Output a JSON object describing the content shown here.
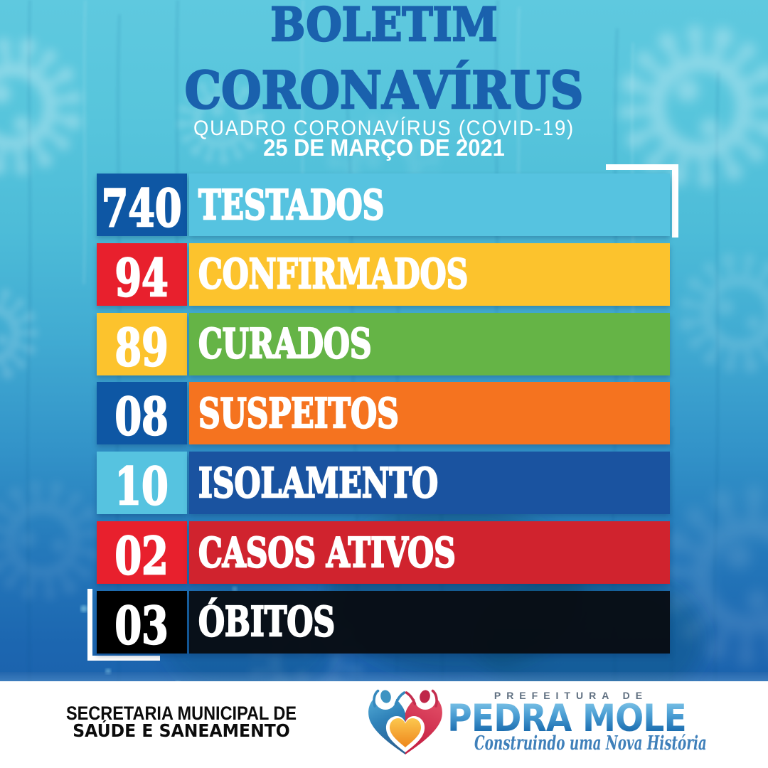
{
  "header": {
    "title_line1": "BOLETIM",
    "title_line2": "CORONAVÍRUS",
    "subtitle": "QUADRO CORONAVÍRUS (COVID-19)",
    "date": "25 DE MARÇO DE 2021"
  },
  "stats": [
    {
      "value": "740",
      "label": "TESTADOS",
      "value_bg": "#0e57a4",
      "bar_bg": "#56c3e0"
    },
    {
      "value": "94",
      "label": "CONFIRMADOS",
      "value_bg": "#e8202d",
      "bar_bg": "#fcc32d"
    },
    {
      "value": "89",
      "label": "CURADOS",
      "value_bg": "#fcc32d",
      "bar_bg": "#65b446"
    },
    {
      "value": "08",
      "label": "SUSPEITOS",
      "value_bg": "#0e57a4",
      "bar_bg": "#f5731f"
    },
    {
      "value": "10",
      "label": "ISOLAMENTO",
      "value_bg": "#56c3e0",
      "bar_bg": "#1a53a0"
    },
    {
      "value": "02",
      "label": "CASOS ATIVOS",
      "value_bg": "#e8202d",
      "bar_bg": "#d0232e"
    },
    {
      "value": "03",
      "label": "ÓBITOS",
      "value_bg": "#000000",
      "bar_bg": "#070b10f0"
    }
  ],
  "chart_data": {
    "type": "table",
    "title": "BOLETIM CORONAVÍRUS",
    "subtitle": "QUADRO CORONAVÍRUS (COVID-19)",
    "date": "25 DE MARÇO DE 2021",
    "categories": [
      "TESTADOS",
      "CONFIRMADOS",
      "CURADOS",
      "SUSPEITOS",
      "ISOLAMENTO",
      "CASOS ATIVOS",
      "ÓBITOS"
    ],
    "values": [
      740,
      94,
      89,
      8,
      10,
      2,
      3
    ],
    "value_labels": [
      "740",
      "94",
      "89",
      "08",
      "10",
      "02",
      "03"
    ]
  },
  "footer": {
    "department_line1": "SECRETARIA MUNICIPAL DE",
    "department_line2": "SAÚDE E SANEAMENTO",
    "logo_prefix": "PREFEITURA DE",
    "logo_city": "PEDRA MOLE",
    "logo_slogan": "Construindo uma Nova História"
  },
  "colors": {
    "title_blue": "#1760ac",
    "background_top": "#5ac6dd",
    "background_bottom": "#1b63ad",
    "bracket_white": "#ffffff",
    "footer_bg": "#ffffff",
    "logo_city_blue": "#1b6caf",
    "logo_slogan_blue": "#3a7cb8"
  }
}
